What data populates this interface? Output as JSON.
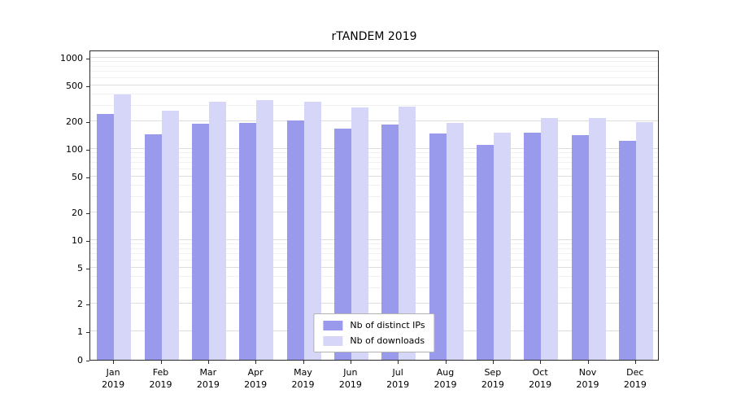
{
  "chart_data": {
    "type": "bar",
    "title": "rTANDEM 2019",
    "x_year": "2019",
    "categories": [
      "Jan",
      "Feb",
      "Mar",
      "Apr",
      "May",
      "Jun",
      "Jul",
      "Aug",
      "Sep",
      "Oct",
      "Nov",
      "Dec"
    ],
    "series": [
      {
        "name": "Nb of distinct IPs",
        "color": "#9a9aec",
        "values": [
          240,
          145,
          190,
          195,
          205,
          168,
          185,
          148,
          110,
          152,
          142,
          122
        ]
      },
      {
        "name": "Nb of downloads",
        "color": "#d6d6f8",
        "values": [
          400,
          265,
          330,
          340,
          330,
          285,
          290,
          195,
          152,
          218,
          218,
          198
        ]
      }
    ],
    "y_scale": "symlog",
    "y_ticks": [
      0,
      1,
      2,
      5,
      10,
      20,
      50,
      100,
      200,
      500,
      1000
    ],
    "y_minor_ticks": [
      3,
      4,
      6,
      7,
      8,
      9,
      30,
      40,
      60,
      70,
      80,
      90,
      300,
      400,
      600,
      700,
      800,
      900
    ],
    "ylim": [
      0,
      1200
    ],
    "xlabel": "",
    "ylabel": "",
    "grid": true,
    "legend_position": "lower center"
  }
}
